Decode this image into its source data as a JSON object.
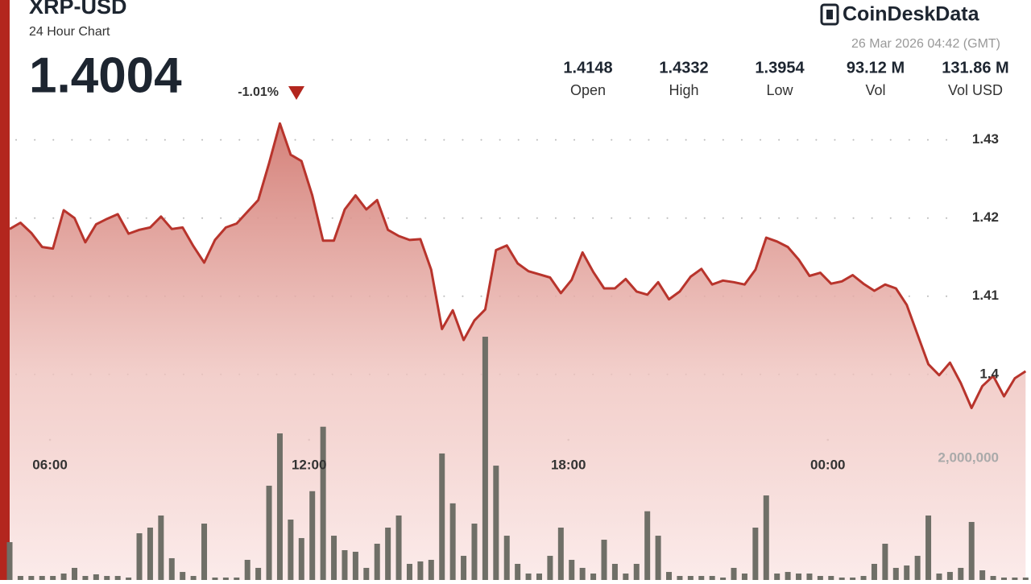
{
  "chart_data": {
    "type": "line",
    "title": "XRP-USD",
    "subtitle": "24 Hour Chart",
    "price": "1.4004",
    "change": "-1.01%",
    "brand": "CoinDeskData",
    "timestamp": "26 Mar 2026 04:42 (GMT)",
    "stats": [
      {
        "value": "1.4148",
        "label": "Open"
      },
      {
        "value": "1.4332",
        "label": "High"
      },
      {
        "value": "1.3954",
        "label": "Low"
      },
      {
        "value": "93.12 M",
        "label": "Vol"
      },
      {
        "value": "131.86 M",
        "label": "Vol USD"
      }
    ],
    "xlim": [
      0,
      94.2
    ],
    "xticks": [
      {
        "value": 3.73,
        "label": "06:00"
      },
      {
        "value": 27.7,
        "label": "12:00"
      },
      {
        "value": 51.7,
        "label": "18:00"
      },
      {
        "value": 75.7,
        "label": "00:00"
      }
    ],
    "ylim": [
      1.3737,
      1.4345
    ],
    "yticks": [
      1.4,
      1.41,
      1.42,
      1.43
    ],
    "y2lim": [
      0,
      4000000
    ],
    "y2ticks": [
      {
        "value": 2000000,
        "label": "2,000,000"
      }
    ],
    "grid": true,
    "series": [
      {
        "name": "Price",
        "color": "#b8342c",
        "values": [
          1.4186,
          1.4194,
          1.4181,
          1.4163,
          1.4161,
          1.421,
          1.42,
          1.4169,
          1.4192,
          1.4199,
          1.4205,
          1.418,
          1.4185,
          1.4188,
          1.4202,
          1.4186,
          1.4188,
          1.4164,
          1.4143,
          1.4172,
          1.4188,
          1.4193,
          1.4208,
          1.4223,
          1.427,
          1.4321,
          1.4281,
          1.4273,
          1.4229,
          1.4171,
          1.4171,
          1.4211,
          1.4229,
          1.4211,
          1.4223,
          1.4185,
          1.4177,
          1.4172,
          1.4173,
          1.4134,
          1.4058,
          1.4082,
          1.4044,
          1.4069,
          1.4083,
          1.4159,
          1.4165,
          1.4142,
          1.4132,
          1.4128,
          1.4124,
          1.4104,
          1.4121,
          1.4156,
          1.4131,
          1.411,
          1.411,
          1.4122,
          1.4106,
          1.4102,
          1.4118,
          1.4096,
          1.4106,
          1.4125,
          1.4135,
          1.4115,
          1.412,
          1.4118,
          1.4115,
          1.4134,
          1.4175,
          1.417,
          1.4163,
          1.4147,
          1.4126,
          1.413,
          1.4116,
          1.4119,
          1.4127,
          1.4116,
          1.4107,
          1.4115,
          1.411,
          1.4089,
          1.4051,
          1.4013,
          1.3999,
          1.4015,
          1.3989,
          1.3957,
          1.3985,
          1.3998,
          1.3972,
          1.3995,
          1.4004
        ]
      },
      {
        "name": "Volume",
        "color": "#6f6f67",
        "axis": "y2",
        "values": [
          622000,
          66000,
          66000,
          66000,
          66000,
          106000,
          199000,
          66000,
          93000,
          66000,
          66000,
          40000,
          768000,
          861000,
          1060000,
          358000,
          132000,
          66000,
          927000,
          40000,
          40000,
          40000,
          331000,
          199000,
          1550000,
          2410000,
          993000,
          689000,
          1460000,
          2520000,
          728000,
          490000,
          464000,
          199000,
          596000,
          861000,
          1060000,
          265000,
          305000,
          331000,
          2080000,
          1260000,
          397000,
          927000,
          4000000,
          1880000,
          728000,
          265000,
          106000,
          106000,
          397000,
          861000,
          331000,
          199000,
          106000,
          662000,
          265000,
          106000,
          265000,
          1130000,
          728000,
          132000,
          66000,
          66000,
          66000,
          66000,
          40000,
          199000,
          106000,
          861000,
          1390000,
          106000,
          132000,
          106000,
          106000,
          66000,
          66000,
          40000,
          40000,
          66000,
          265000,
          596000,
          199000,
          238000,
          397000,
          1060000,
          106000,
          132000,
          199000,
          954000,
          159000,
          66000,
          40000,
          40000,
          40000
        ]
      }
    ]
  }
}
